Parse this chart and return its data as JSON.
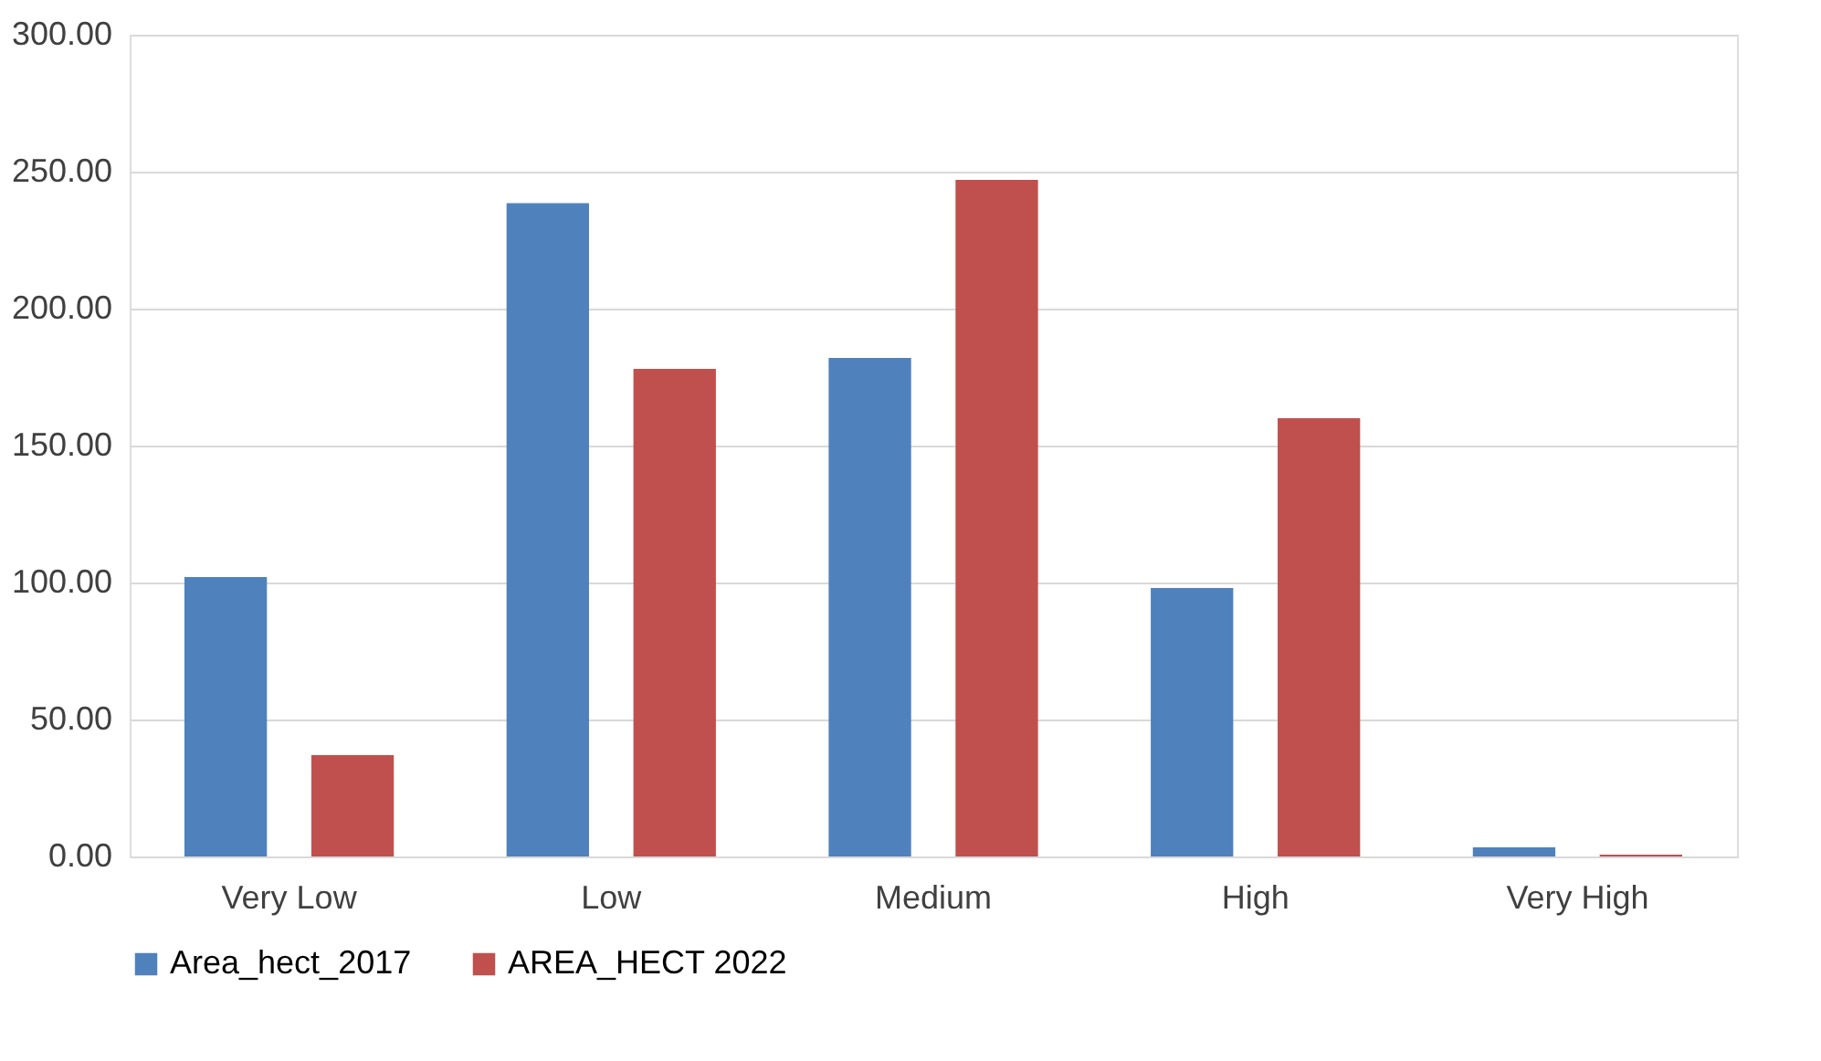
{
  "chart_data": {
    "type": "bar",
    "categories": [
      "Very Low",
      "Low",
      "Medium",
      "High",
      "Very High"
    ],
    "series": [
      {
        "name": "Area_hect_2017",
        "color": "#4f81bd",
        "values": [
          102,
          238.5,
          182,
          98,
          3.3
        ]
      },
      {
        "name": "AREA_HECT 2022",
        "color": "#c0504d",
        "values": [
          37,
          178,
          247,
          160,
          0.7
        ]
      }
    ],
    "ylim": [
      0,
      300
    ],
    "yticks": [
      {
        "value": 0,
        "label": "0.00"
      },
      {
        "value": 50,
        "label": "50.00"
      },
      {
        "value": 100,
        "label": "100.00"
      },
      {
        "value": 150,
        "label": "150.00"
      },
      {
        "value": 200,
        "label": "200.00"
      },
      {
        "value": 250,
        "label": "250.00"
      },
      {
        "value": 300,
        "label": "300.00"
      }
    ],
    "grid": "y",
    "legend": "bottom"
  }
}
